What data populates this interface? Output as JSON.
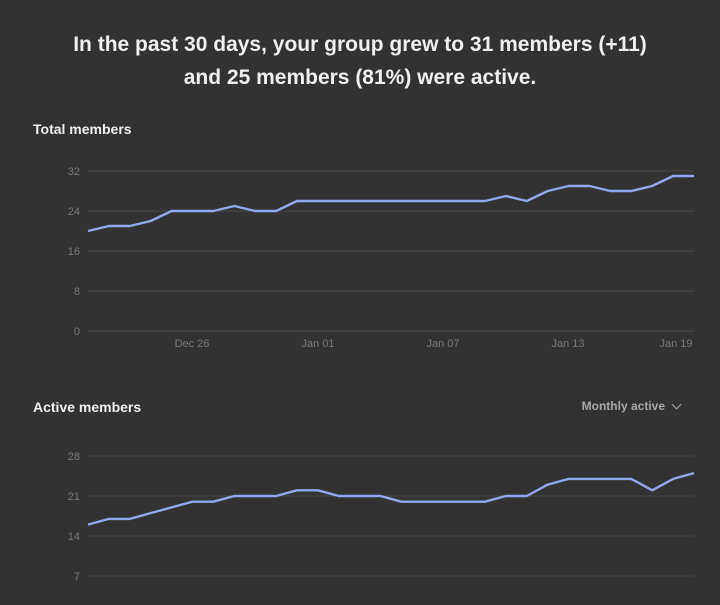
{
  "summary": {
    "line1": "In the past 30 days, your group grew to 31 members (+11)",
    "line2": "and 25 members (81%) were active."
  },
  "total_section": {
    "title": "Total members"
  },
  "active_section": {
    "title": "Active members",
    "dropdown_label": "Monthly active"
  },
  "icons": {
    "dropdown": "chevron-down-icon"
  },
  "colors": {
    "line": "#8fa8f0",
    "grid": "#484848",
    "background": "#323232"
  },
  "chart_data": [
    {
      "type": "line",
      "title": "Total members",
      "xlabel": "",
      "ylabel": "",
      "x_ticks": [
        "Dec 26",
        "Jan 01",
        "Jan 07",
        "Jan 13",
        "Jan 19"
      ],
      "y_ticks": [
        0,
        8,
        16,
        24,
        32
      ],
      "ylim": [
        0,
        32
      ],
      "grid": true,
      "series": [
        {
          "values": [
            20,
            21,
            21,
            22,
            24,
            24,
            24,
            25,
            24,
            24,
            26,
            26,
            26,
            26,
            26,
            26,
            26,
            26,
            26,
            26,
            27,
            26,
            28,
            29,
            29,
            28,
            28,
            29,
            31,
            31
          ]
        }
      ]
    },
    {
      "type": "line",
      "title": "Active members",
      "xlabel": "",
      "ylabel": "",
      "y_ticks": [
        7,
        14,
        21,
        28
      ],
      "grid": true,
      "series": [
        {
          "values": [
            16,
            17,
            17,
            18,
            19,
            20,
            20,
            21,
            21,
            21,
            22,
            22,
            21,
            21,
            21,
            20,
            20,
            20,
            20,
            20,
            21,
            21,
            23,
            24,
            24,
            24,
            24,
            22,
            24,
            25
          ]
        }
      ]
    }
  ]
}
